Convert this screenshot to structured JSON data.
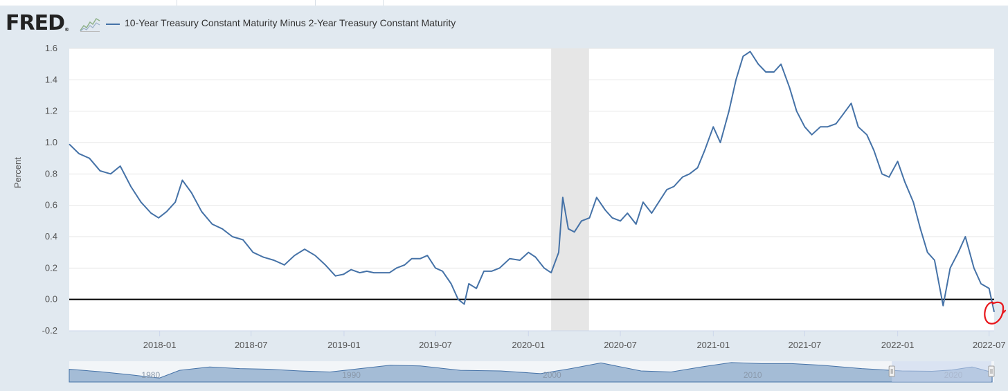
{
  "header": {
    "logo_text": "FRED",
    "logo_mark": "®",
    "logo_icon": "sparkline-chart-icon",
    "series_label": "10-Year Treasury Constant Maturity Minus 2-Year Treasury Constant Maturity"
  },
  "colors": {
    "page_background": "#e1e9f0",
    "plot_background": "#ffffff",
    "series_line": "#4572a7",
    "zero_line": "#000000",
    "recession_band": "#e6e6e6",
    "annotation": "#e8161b",
    "navigator_fill": "#a4bcd6",
    "navigator_selection": "#c6d4ec"
  },
  "annotations": [
    {
      "type": "hand-drawn-circle",
      "color": "#e8161b",
      "near_date": "2022-07-06"
    }
  ],
  "chart_data": {
    "type": "line",
    "title": "",
    "xlabel": "",
    "ylabel": "Percent",
    "ylim": [
      -0.2,
      1.6
    ],
    "yticks": [
      -0.2,
      0.0,
      0.2,
      0.4,
      0.6,
      0.8,
      1.0,
      1.2,
      1.4,
      1.6
    ],
    "ytick_labels": [
      "-0.2",
      "0.0",
      "0.2",
      "0.4",
      "0.6",
      "0.8",
      "1.0",
      "1.2",
      "1.4",
      "1.6"
    ],
    "xlim": [
      "2017-07-06",
      "2022-07-11"
    ],
    "xticks": [
      "2018-01",
      "2018-07",
      "2019-01",
      "2019-07",
      "2020-01",
      "2020-07",
      "2021-01",
      "2021-07",
      "2022-01",
      "2022-07"
    ],
    "grid": true,
    "legend_position": "top-left",
    "reference_line": {
      "y": 0.0,
      "color": "#000000"
    },
    "recession_shading": [
      {
        "start": "2020-02-15",
        "end": "2020-04-30"
      }
    ],
    "series": [
      {
        "name": "10-Year Treasury Constant Maturity Minus 2-Year Treasury Constant Maturity",
        "color": "#4572a7",
        "x": [
          "2017-07-06",
          "2017-07-25",
          "2017-08-15",
          "2017-09-05",
          "2017-09-26",
          "2017-10-15",
          "2017-11-05",
          "2017-11-25",
          "2017-12-15",
          "2017-12-30",
          "2018-01-15",
          "2018-02-01",
          "2018-02-15",
          "2018-03-05",
          "2018-03-25",
          "2018-04-15",
          "2018-05-05",
          "2018-05-25",
          "2018-06-15",
          "2018-07-05",
          "2018-07-25",
          "2018-08-15",
          "2018-09-05",
          "2018-09-25",
          "2018-10-15",
          "2018-11-05",
          "2018-11-25",
          "2018-12-15",
          "2018-12-31",
          "2019-01-15",
          "2019-02-01",
          "2019-02-15",
          "2019-03-01",
          "2019-03-15",
          "2019-04-01",
          "2019-04-15",
          "2019-05-01",
          "2019-05-15",
          "2019-06-01",
          "2019-06-15",
          "2019-07-01",
          "2019-07-15",
          "2019-08-01",
          "2019-08-15",
          "2019-08-27",
          "2019-09-05",
          "2019-09-20",
          "2019-10-05",
          "2019-10-20",
          "2019-11-05",
          "2019-11-25",
          "2019-12-15",
          "2020-01-01",
          "2020-01-15",
          "2020-02-01",
          "2020-02-15",
          "2020-03-01",
          "2020-03-09",
          "2020-03-20",
          "2020-04-01",
          "2020-04-15",
          "2020-05-01",
          "2020-05-15",
          "2020-06-01",
          "2020-06-15",
          "2020-07-01",
          "2020-07-15",
          "2020-08-01",
          "2020-08-15",
          "2020-09-01",
          "2020-09-15",
          "2020-10-01",
          "2020-10-15",
          "2020-11-01",
          "2020-11-15",
          "2020-12-01",
          "2020-12-15",
          "2021-01-01",
          "2021-01-15",
          "2021-02-01",
          "2021-02-15",
          "2021-03-01",
          "2021-03-15",
          "2021-03-31",
          "2021-04-15",
          "2021-05-01",
          "2021-05-15",
          "2021-06-01",
          "2021-06-15",
          "2021-07-01",
          "2021-07-15",
          "2021-08-01",
          "2021-08-15",
          "2021-09-01",
          "2021-09-15",
          "2021-10-01",
          "2021-10-15",
          "2021-11-01",
          "2021-11-15",
          "2021-12-01",
          "2021-12-15",
          "2022-01-01",
          "2022-01-15",
          "2022-02-01",
          "2022-02-15",
          "2022-03-01",
          "2022-03-15",
          "2022-04-01",
          "2022-04-15",
          "2022-05-01",
          "2022-05-15",
          "2022-06-01",
          "2022-06-15",
          "2022-07-01",
          "2022-07-11"
        ],
        "values": [
          0.99,
          0.93,
          0.9,
          0.82,
          0.8,
          0.85,
          0.72,
          0.62,
          0.55,
          0.52,
          0.56,
          0.62,
          0.76,
          0.68,
          0.56,
          0.48,
          0.45,
          0.4,
          0.38,
          0.3,
          0.27,
          0.25,
          0.22,
          0.28,
          0.32,
          0.28,
          0.22,
          0.15,
          0.16,
          0.19,
          0.17,
          0.18,
          0.17,
          0.17,
          0.17,
          0.2,
          0.22,
          0.26,
          0.26,
          0.28,
          0.2,
          0.18,
          0.1,
          0.0,
          -0.03,
          0.1,
          0.07,
          0.18,
          0.18,
          0.2,
          0.26,
          0.25,
          0.3,
          0.27,
          0.2,
          0.17,
          0.3,
          0.65,
          0.45,
          0.43,
          0.5,
          0.52,
          0.65,
          0.57,
          0.52,
          0.5,
          0.55,
          0.48,
          0.62,
          0.55,
          0.62,
          0.7,
          0.72,
          0.78,
          0.8,
          0.84,
          0.95,
          1.1,
          1.0,
          1.2,
          1.4,
          1.55,
          1.58,
          1.5,
          1.45,
          1.45,
          1.5,
          1.35,
          1.2,
          1.1,
          1.05,
          1.1,
          1.1,
          1.12,
          1.18,
          1.25,
          1.1,
          1.05,
          0.95,
          0.8,
          0.78,
          0.88,
          0.75,
          0.62,
          0.45,
          0.3,
          0.25,
          -0.04,
          0.2,
          0.3,
          0.4,
          0.2,
          0.1,
          0.07,
          -0.08
        ]
      }
    ]
  },
  "navigator": {
    "tick_labels": [
      "1980",
      "1990",
      "2000",
      "2010",
      "2020"
    ],
    "x": [
      1976.5,
      1978,
      1979.5,
      1980.5,
      1981,
      1982,
      1983.5,
      1985,
      1986.5,
      1988,
      1989.5,
      1991,
      1992.5,
      1994,
      1996,
      1998,
      2000,
      2001.5,
      2003,
      2005,
      2006.5,
      2008,
      2009.5,
      2011,
      2012.5,
      2014,
      2016,
      2018,
      2019.5,
      2020.5,
      2021.5,
      2022.5
    ],
    "values": [
      0.8,
      0.1,
      -0.8,
      -1.5,
      -1.8,
      0.5,
      1.5,
      1.0,
      0.8,
      0.3,
      0.0,
      1.0,
      2.0,
      1.8,
      0.5,
      0.3,
      -0.5,
      1.0,
      2.7,
      0.3,
      0.0,
      1.5,
      2.8,
      2.5,
      2.5,
      2.0,
      1.0,
      0.3,
      0.2,
      0.6,
      1.5,
      -0.1
    ],
    "range": {
      "start": "2017-07-06",
      "end": "2022-07-11"
    }
  }
}
